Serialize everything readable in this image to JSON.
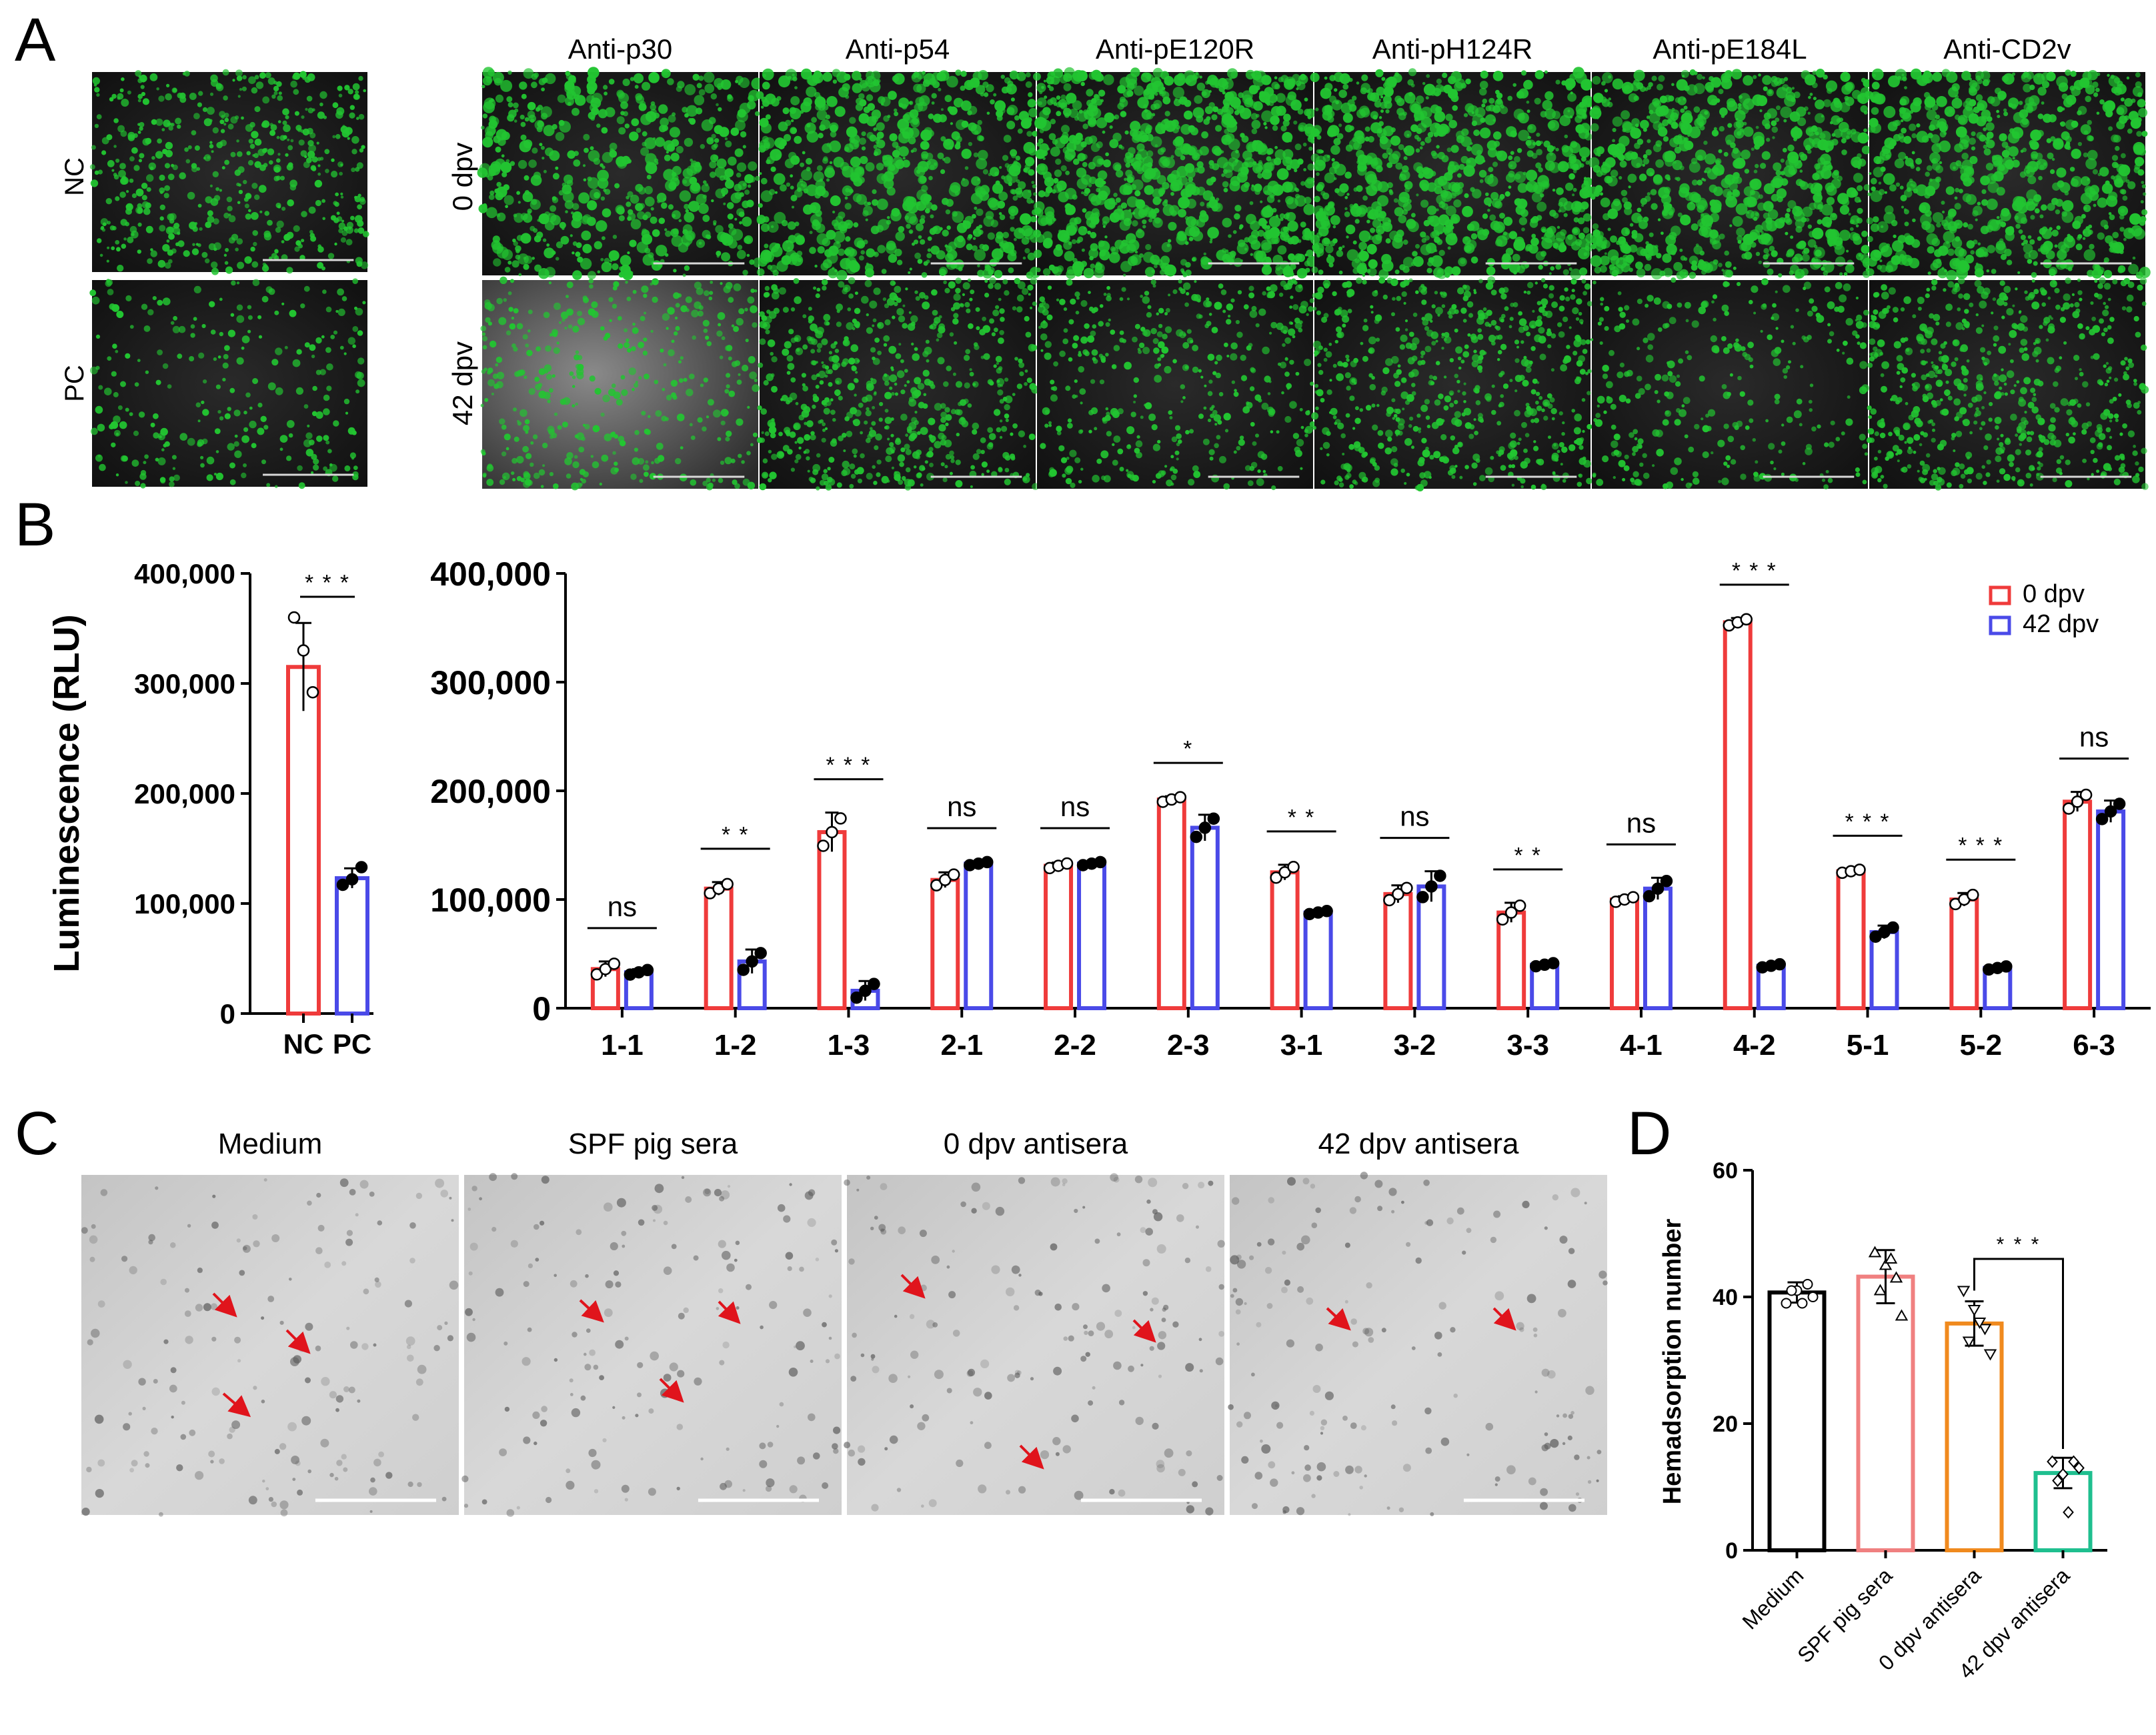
{
  "panels": {
    "A": {
      "letter": "A",
      "columns": [
        "Anti-p30",
        "Anti-p54",
        "Anti-pE120R",
        "Anti-pH124R",
        "Anti-pE184L",
        "Anti-CD2v"
      ],
      "rows": [
        "0 dpv",
        "42 dpv"
      ],
      "controls": [
        "NC",
        "PC"
      ],
      "fluorescence_color": "#22c531",
      "background_color": "#1c1c1c"
    },
    "C": {
      "letter": "C",
      "columns": [
        "Medium",
        "SPF pig sera",
        "0 dpv antisera",
        "42 dpv antisera"
      ],
      "arrow_color": "#e0141c"
    }
  },
  "chart_data": [
    {
      "id": "B-left",
      "panel_letter": "B",
      "type": "bar",
      "ylabel": "Luminescence (RLU)",
      "ylim": [
        0,
        400000
      ],
      "yticks": [
        "0",
        "100,000",
        "200,000",
        "300,000",
        "400,000"
      ],
      "categories": [
        "NC",
        "PC"
      ],
      "series": [
        {
          "values": [
            315000,
            123000
          ]
        }
      ],
      "colors": [
        "#ef3b3b",
        "#4a4ae8"
      ],
      "error": [
        40000,
        9000
      ],
      "points": [
        [
          360000,
          330000,
          292000
        ],
        [
          117000,
          122000,
          133000
        ]
      ],
      "significance": [
        "***"
      ]
    },
    {
      "id": "B-right",
      "type": "bar",
      "ylim": [
        0,
        400000
      ],
      "yticks": [
        "0",
        "100,000",
        "200,000",
        "300,000",
        "400,000"
      ],
      "categories": [
        "1-1",
        "1-2",
        "1-3",
        "2-1",
        "2-2",
        "2-3",
        "3-1",
        "3-2",
        "3-3",
        "4-1",
        "4-2",
        "5-1",
        "5-2",
        "6-3"
      ],
      "series": [
        {
          "name": "0 dpv",
          "color": "#ef3b3b",
          "values": [
            36000,
            110000,
            162000,
            118000,
            131000,
            192000,
            125000,
            105000,
            88000,
            100000,
            355000,
            126000,
            100000,
            190000
          ],
          "error": [
            7000,
            6000,
            18000,
            7000,
            3000,
            3000,
            7000,
            8000,
            9000,
            3000,
            4000,
            2000,
            6000,
            9000
          ]
        },
        {
          "name": "42 dpv",
          "color": "#4a4ae8",
          "values": [
            33000,
            43000,
            16000,
            133000,
            133000,
            166000,
            88000,
            112000,
            40000,
            110000,
            39000,
            70000,
            37000,
            181000
          ],
          "error": [
            3000,
            11000,
            9000,
            2000,
            2000,
            12000,
            2000,
            14000,
            2000,
            10000,
            2000,
            6000,
            2000,
            10000
          ]
        }
      ],
      "significance": [
        "ns",
        "**",
        "***",
        "ns",
        "ns",
        "*",
        "**",
        "ns",
        "**",
        "ns",
        "***",
        "***",
        "***",
        "ns"
      ],
      "legend": "top-right"
    },
    {
      "id": "D",
      "panel_letter": "D",
      "type": "bar",
      "ylabel": "Hemadsorption number",
      "ylim": [
        0,
        60
      ],
      "yticks": [
        "0",
        "20",
        "40",
        "60"
      ],
      "categories": [
        "Medium",
        "SPF pig sera",
        "0 dpv antisera",
        "42 dpv antisera"
      ],
      "series": [
        {
          "values": [
            40.7,
            43.2,
            35.8,
            12.2
          ]
        }
      ],
      "colors": [
        "#000000",
        "#f08080",
        "#f08a1e",
        "#1fbf8f"
      ],
      "error": [
        1.6,
        4.2,
        3.5,
        2.4
      ],
      "points": [
        [
          39,
          41,
          42,
          41,
          39,
          40
        ],
        [
          47,
          45,
          43,
          41,
          46,
          37
        ],
        [
          41,
          38,
          35,
          33,
          36,
          31
        ],
        [
          14,
          12,
          14,
          11,
          6,
          13
        ]
      ],
      "markers": [
        "circle",
        "triangle-up",
        "triangle-down",
        "diamond"
      ],
      "significance": [
        "***"
      ]
    }
  ]
}
